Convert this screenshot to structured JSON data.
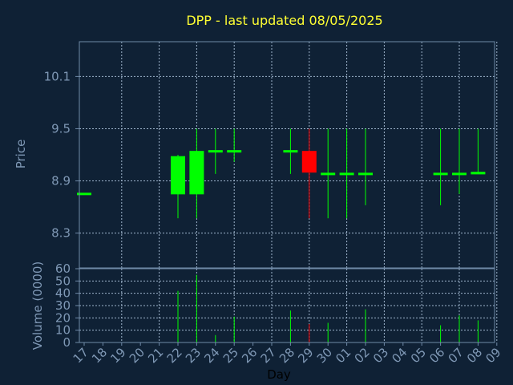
{
  "colors": {
    "background": "#0f2135",
    "frame": "#6f8aa8",
    "grid": "#9eb4cc",
    "title": "#ffff33",
    "tick_text": "#7f98b5",
    "up": "#00ff00",
    "down": "#ff0000"
  },
  "chart_data": [
    {
      "type": "candlestick",
      "title": "DPP - last updated 08/05/2025",
      "ylabel": "Price",
      "ylim": [
        7.9,
        10.5
      ],
      "yticks": [
        "8.3",
        "8.9",
        "9.5",
        "10.1"
      ],
      "ytick_values": [
        8.3,
        8.9,
        9.5,
        10.1
      ],
      "grid": true,
      "x_labels": [
        "17",
        "18",
        "19",
        "20",
        "21",
        "22",
        "23",
        "24",
        "25",
        "26",
        "27",
        "28",
        "29",
        "30",
        "01",
        "02",
        "03",
        "04",
        "05",
        "06",
        "07",
        "08",
        "09"
      ],
      "candles": [
        {
          "day": "17",
          "open": 8.75,
          "high": 8.75,
          "low": 8.75,
          "close": 8.75
        },
        {
          "day": "22",
          "open": 8.75,
          "high": 9.2,
          "low": 8.47,
          "close": 9.18
        },
        {
          "day": "23",
          "open": 8.75,
          "high": 9.5,
          "low": 8.47,
          "close": 9.24
        },
        {
          "day": "24",
          "open": 9.24,
          "high": 9.5,
          "low": 8.98,
          "close": 9.24
        },
        {
          "day": "25",
          "open": 9.24,
          "high": 9.5,
          "low": 9.12,
          "close": 9.24
        },
        {
          "day": "28",
          "open": 9.24,
          "high": 9.5,
          "low": 8.98,
          "close": 9.24
        },
        {
          "day": "29",
          "open": 9.24,
          "high": 9.5,
          "low": 8.47,
          "close": 9.0
        },
        {
          "day": "30",
          "open": 8.98,
          "high": 9.5,
          "low": 8.47,
          "close": 8.98
        },
        {
          "day": "01",
          "open": 8.98,
          "high": 9.5,
          "low": 8.47,
          "close": 8.98
        },
        {
          "day": "02",
          "open": 8.98,
          "high": 9.5,
          "low": 8.62,
          "close": 8.98
        },
        {
          "day": "06",
          "open": 8.98,
          "high": 9.5,
          "low": 8.62,
          "close": 8.98
        },
        {
          "day": "07",
          "open": 8.98,
          "high": 9.5,
          "low": 8.75,
          "close": 8.98
        },
        {
          "day": "08",
          "open": 8.98,
          "high": 9.5,
          "low": 8.98,
          "close": 9.0
        }
      ]
    },
    {
      "type": "bar",
      "ylabel": "Volume (0000)",
      "xlabel": "Day",
      "ylim": [
        0,
        60
      ],
      "yticks": [
        "0",
        "10",
        "20",
        "30",
        "40",
        "50",
        "60"
      ],
      "ytick_values": [
        0,
        10,
        20,
        30,
        40,
        50,
        60
      ],
      "grid": true,
      "x_labels": [
        "17",
        "18",
        "19",
        "20",
        "21",
        "22",
        "23",
        "24",
        "25",
        "26",
        "27",
        "28",
        "29",
        "30",
        "01",
        "02",
        "03",
        "04",
        "05",
        "06",
        "07",
        "08",
        "09"
      ],
      "volumes": [
        {
          "day": "22",
          "value": 42
        },
        {
          "day": "23",
          "value": 55
        },
        {
          "day": "24",
          "value": 6
        },
        {
          "day": "25",
          "value": 21
        },
        {
          "day": "28",
          "value": 26
        },
        {
          "day": "29",
          "value": 15
        },
        {
          "day": "30",
          "value": 16
        },
        {
          "day": "02",
          "value": 27
        },
        {
          "day": "06",
          "value": 14
        },
        {
          "day": "07",
          "value": 22
        },
        {
          "day": "08",
          "value": 18
        }
      ]
    }
  ]
}
